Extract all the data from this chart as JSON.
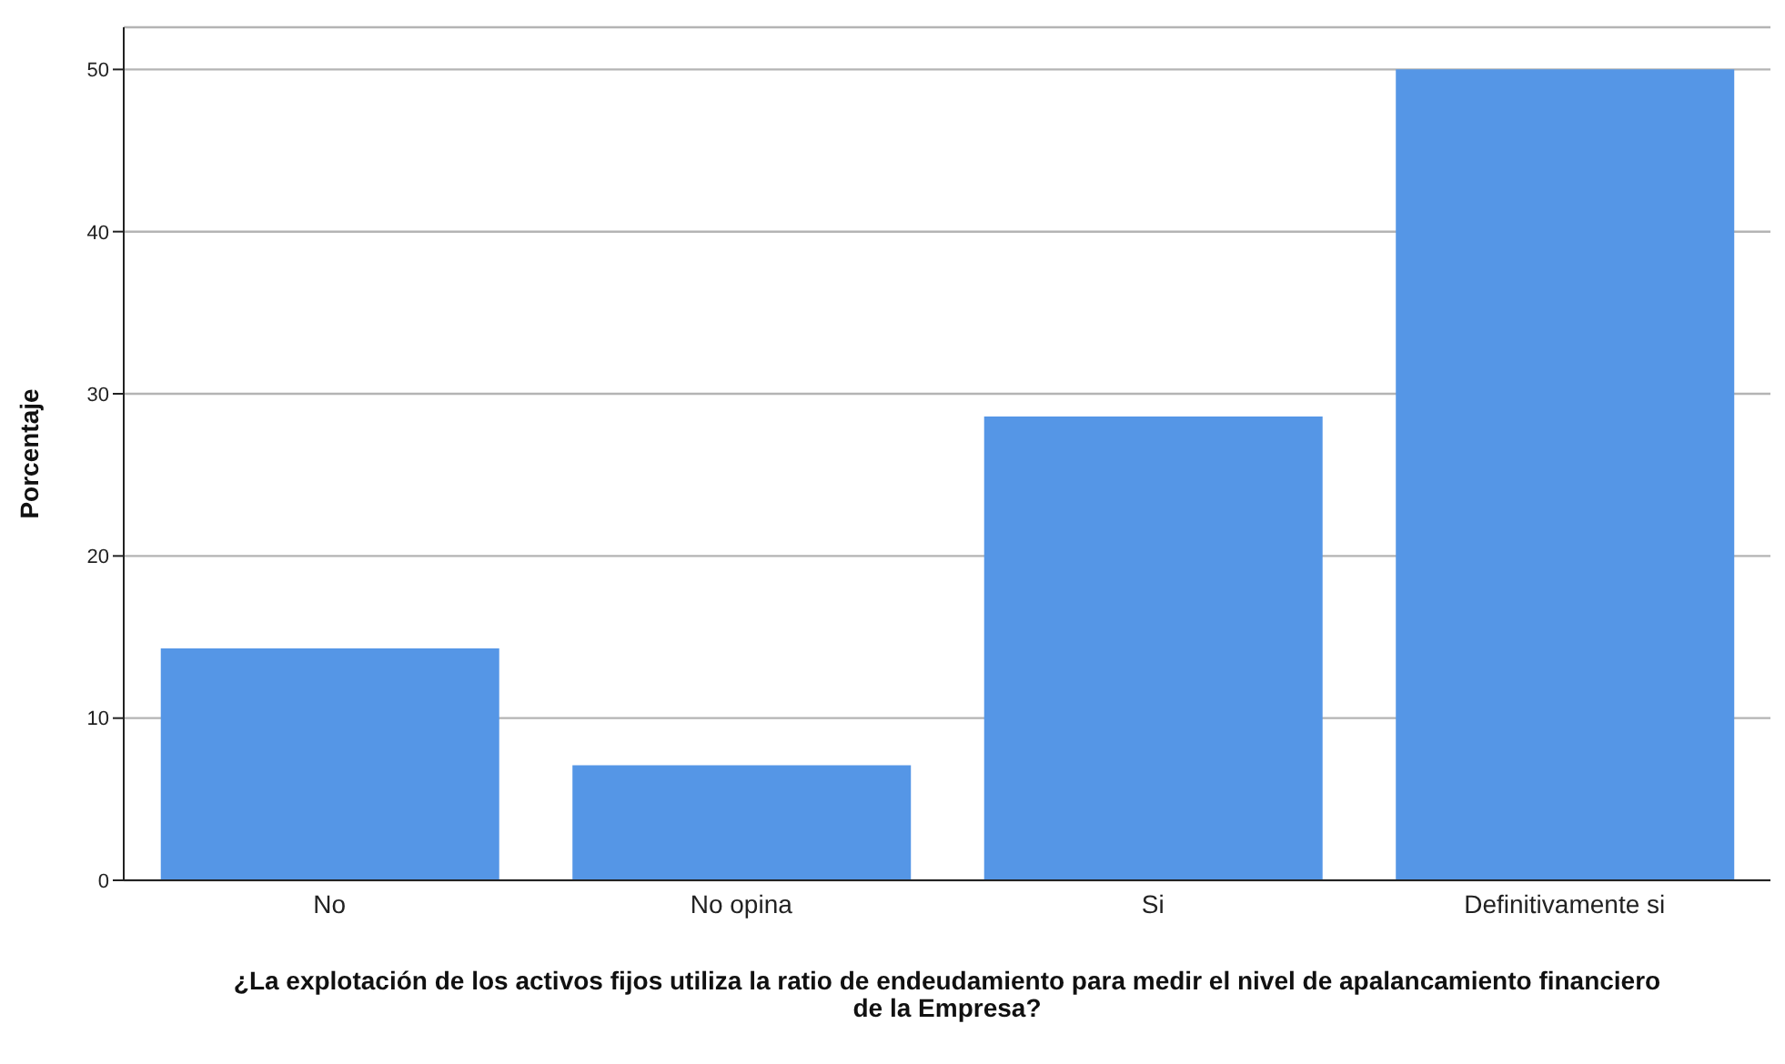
{
  "chart_data": {
    "type": "bar",
    "xlabel": "¿La explotación de los activos fijos utiliza la ratio de endeudamiento  para medir el nivel de apalancamiento financiero de la Empresa?",
    "ylabel": "Porcentaje",
    "categories": [
      "No",
      "No opina",
      "Si",
      "Definitivamente si"
    ],
    "values": [
      14.3,
      7.1,
      28.6,
      50
    ],
    "color": "#5596e6",
    "ylim": [
      0,
      52.6
    ],
    "yticks": [
      0,
      10,
      20,
      30,
      40,
      50
    ],
    "grid": "y"
  }
}
